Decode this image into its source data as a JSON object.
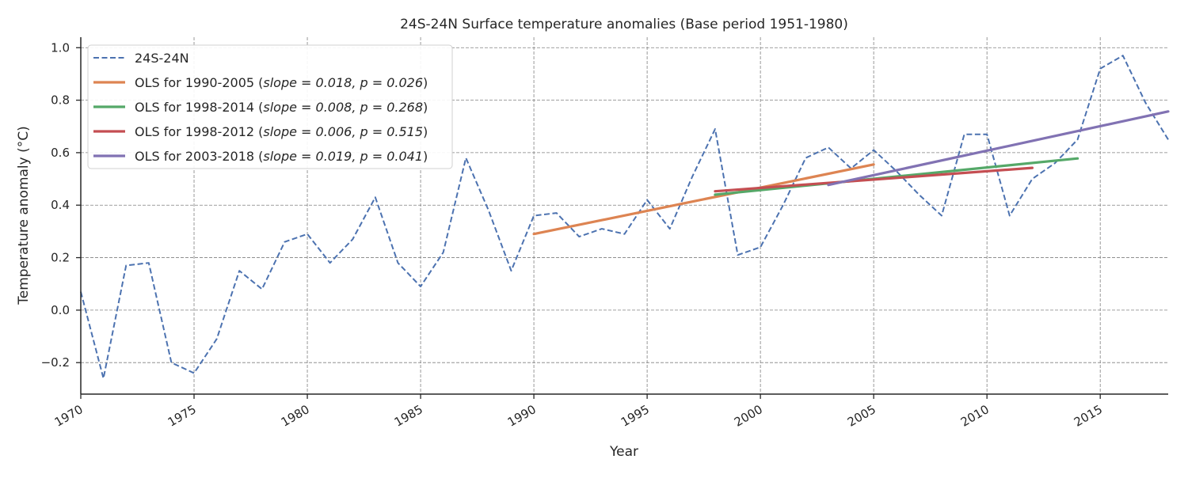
{
  "chart_data": {
    "type": "line",
    "title": "24S-24N Surface temperature anomalies (Base period 1951-1980)",
    "xlabel": "Year",
    "ylabel": "Temperature anomaly (°C)",
    "xlim": [
      1970,
      2018
    ],
    "ylim": [
      -0.32,
      1.04
    ],
    "x_ticks": [
      1970,
      1975,
      1980,
      1985,
      1990,
      1995,
      2000,
      2005,
      2010,
      2015
    ],
    "y_ticks": [
      -0.2,
      0.0,
      0.2,
      0.4,
      0.6,
      0.8,
      1.0
    ],
    "y_tick_labels": [
      "−0.2",
      "0.0",
      "0.2",
      "0.4",
      "0.6",
      "0.8",
      "1.0"
    ],
    "grid": true,
    "legend_position": "upper-left",
    "series": [
      {
        "name": "24S-24N",
        "style": "dashed",
        "color": "#4c72b0",
        "x": [
          1970,
          1971,
          1972,
          1973,
          1974,
          1975,
          1976,
          1977,
          1978,
          1979,
          1980,
          1981,
          1982,
          1983,
          1984,
          1985,
          1986,
          1987,
          1988,
          1989,
          1990,
          1991,
          1992,
          1993,
          1994,
          1995,
          1996,
          1997,
          1998,
          1999,
          2000,
          2001,
          2002,
          2003,
          2004,
          2005,
          2006,
          2007,
          2008,
          2009,
          2010,
          2011,
          2012,
          2013,
          2014,
          2015,
          2016,
          2017,
          2018
        ],
        "values": [
          0.07,
          -0.26,
          0.17,
          0.18,
          -0.2,
          -0.24,
          -0.11,
          0.15,
          0.08,
          0.26,
          0.29,
          0.18,
          0.27,
          0.43,
          0.18,
          0.09,
          0.22,
          0.58,
          0.38,
          0.15,
          0.36,
          0.37,
          0.28,
          0.31,
          0.29,
          0.42,
          0.31,
          0.51,
          0.69,
          0.21,
          0.24,
          0.4,
          0.58,
          0.62,
          0.54,
          0.61,
          0.53,
          0.44,
          0.36,
          0.67,
          0.67,
          0.36,
          0.5,
          0.56,
          0.65,
          0.92,
          0.97,
          0.79,
          0.65
        ]
      },
      {
        "name": "OLS for 1990-2005",
        "slope_text": "slope = 0.018",
        "p_text": "p = 0.026",
        "style": "solid",
        "color": "#dd8452",
        "x": [
          1990,
          2005
        ],
        "values": [
          0.29,
          0.555
        ]
      },
      {
        "name": "OLS for 1998-2014",
        "slope_text": "slope = 0.008",
        "p_text": "p = 0.268",
        "style": "solid",
        "color": "#55a868",
        "x": [
          1998,
          2014
        ],
        "values": [
          0.44,
          0.578
        ]
      },
      {
        "name": "OLS for 1998-2012",
        "slope_text": "slope = 0.006",
        "p_text": "p = 0.515",
        "style": "solid",
        "color": "#c44e52",
        "x": [
          1998,
          2012
        ],
        "values": [
          0.453,
          0.542
        ]
      },
      {
        "name": "OLS for 2003-2018",
        "slope_text": "slope = 0.019",
        "p_text": "p = 0.041",
        "style": "solid",
        "color": "#8172b3",
        "x": [
          2003,
          2018
        ],
        "values": [
          0.477,
          0.757
        ]
      }
    ]
  }
}
